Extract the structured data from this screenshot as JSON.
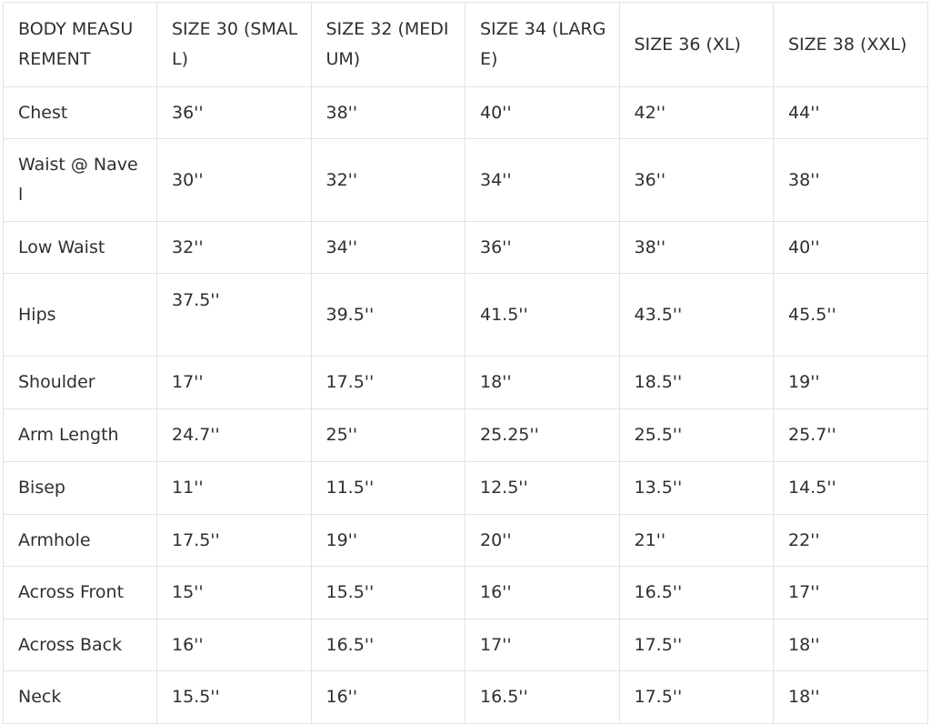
{
  "headers": [
    "BODY MEASUREMENT",
    "SIZE 30 (SMALL)",
    "SIZE 32 (MEDIUM)",
    "SIZE 34 (LARGE)",
    "SIZE 36 (XL)",
    "SIZE 38 (XXL)"
  ],
  "rows": [
    {
      "label": "Chest",
      "values": [
        "36''",
        "38''",
        "40''",
        "42''",
        "44''"
      ]
    },
    {
      "label": "Waist @ Navel",
      "values": [
        "30''",
        "32''",
        "34''",
        "36''",
        "38''"
      ]
    },
    {
      "label": "Low Waist",
      "values": [
        "32''",
        "34''",
        "36''",
        "38''",
        "40''"
      ]
    },
    {
      "label": "Hips",
      "values": [
        "37.5''",
        "39.5''",
        "41.5''",
        "43.5''",
        "45.5''"
      ]
    },
    {
      "label": "Shoulder",
      "values": [
        "17''",
        "17.5''",
        "18''",
        "18.5''",
        "19''"
      ]
    },
    {
      "label": "Arm Length",
      "values": [
        "24.7''",
        "25''",
        "25.25''",
        "25.5''",
        "25.7''"
      ]
    },
    {
      "label": "Bisep",
      "values": [
        "11''",
        "11.5''",
        "12.5''",
        "13.5''",
        "14.5''"
      ]
    },
    {
      "label": "Armhole",
      "values": [
        "17.5''",
        "19''",
        "20''",
        "21''",
        "22''"
      ]
    },
    {
      "label": "Across Front",
      "values": [
        "15''",
        "15.5''",
        "16''",
        "16.5''",
        "17''"
      ]
    },
    {
      "label": "Across Back",
      "values": [
        "16''",
        "16.5''",
        "17''",
        "17.5''",
        "18''"
      ]
    },
    {
      "label": "Neck",
      "values": [
        "15.5''",
        "16''",
        "16.5''",
        "17.5''",
        "18''"
      ]
    }
  ]
}
